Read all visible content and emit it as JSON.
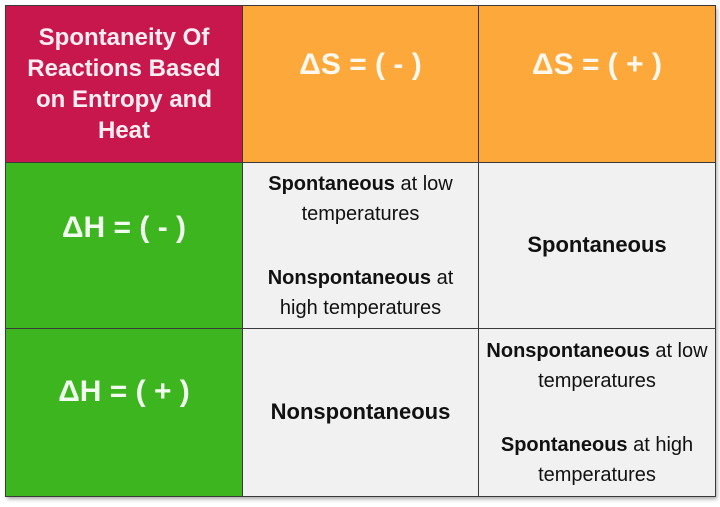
{
  "table": {
    "title": "Spontaneity Of Reactions Based on Entropy and Heat",
    "column_headers": [
      "ΔS = ( - )",
      "ΔS = ( + )"
    ],
    "rows": [
      {
        "header": "ΔH = ( - )",
        "cells": [
          {
            "line1_bold": "Spontaneous",
            "line1_rest": " at low temperatures",
            "line2_bold": "Nonspontaneous",
            "line2_rest": " at high temperatures"
          },
          {
            "single": "Spontaneous"
          }
        ]
      },
      {
        "header": "ΔH = ( + )",
        "cells": [
          {
            "single": "Nonspontaneous"
          },
          {
            "line1_bold": "Nonspontaneous",
            "line1_rest": " at low temperatures",
            "line2_bold": "Spontaneous",
            "line2_rest": " at high temperatures"
          }
        ]
      }
    ]
  },
  "colors": {
    "title_bg": "#c8174d",
    "column_header_bg": "#fca83a",
    "row_header_bg": "#3cb51f",
    "cell_bg": "#f1f1f1",
    "border": "#3a3a3a"
  }
}
